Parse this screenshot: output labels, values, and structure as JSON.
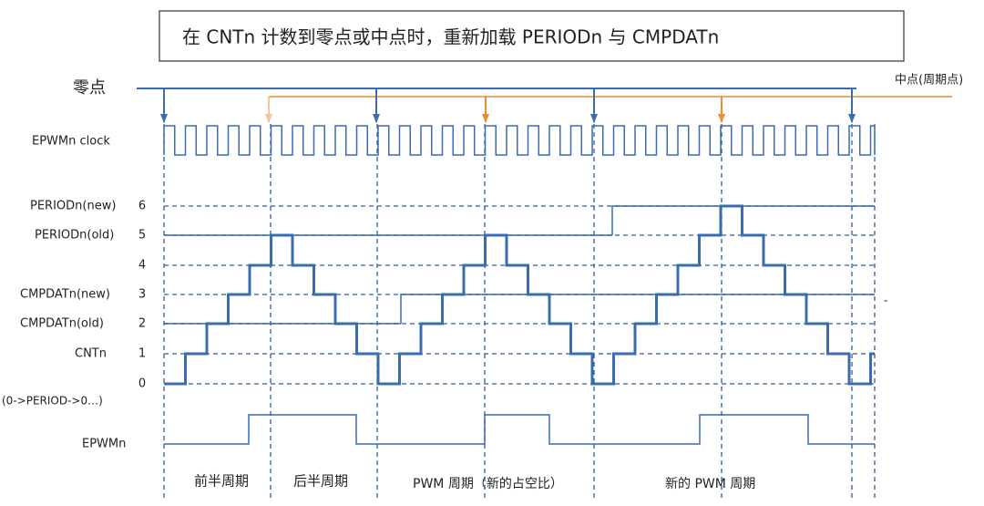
{
  "title": "在 CNTn 计数到零点或中点时，重新加载 PERIODn 与 CMPDATn",
  "zero_label": "零点",
  "mid_label": "中点(周期点)",
  "clock_label": "EPWMn clock",
  "signal_labels": [
    "PERIODn(new)",
    "PERIODn(old)",
    "CMPDATn(new)",
    "CMPDATn(old)",
    "CNTn",
    "(0->PERIOD->0…)"
  ],
  "levels": [
    "6",
    "5",
    "4",
    "3",
    "2",
    "1",
    "0"
  ],
  "output_label": "EPWMn",
  "phase_labels": [
    "前半周期",
    "后半周期",
    "PWM 周期（新的占空比）",
    "新的 PWM 周期"
  ],
  "mark": "-"
}
